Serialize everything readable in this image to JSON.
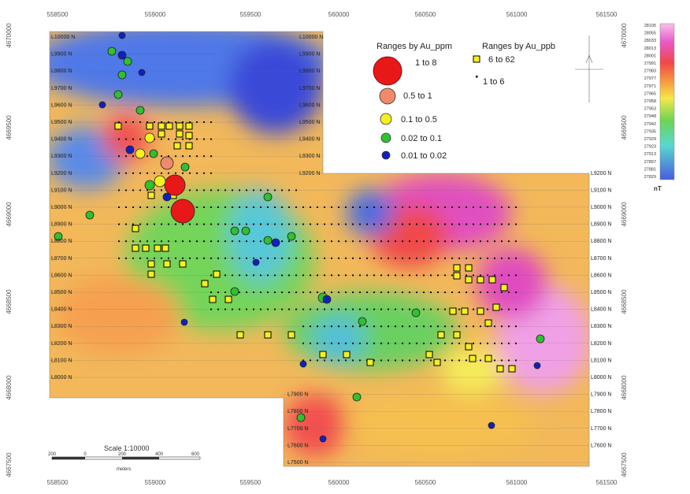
{
  "x_axis_labels": [
    "558500",
    "559000",
    "559500",
    "560000",
    "560500",
    "561000",
    "561500"
  ],
  "y_axis_labels": [
    "4670000",
    "4669500",
    "4669000",
    "4668500",
    "4668000",
    "4667500"
  ],
  "line_labels": [
    "L10000 N",
    "L9900 N",
    "L9800 N",
    "L9700 N",
    "L9600 N",
    "L9500 N",
    "L9400 N",
    "L9300 N",
    "L9200 N",
    "L9100 N",
    "L9000 N",
    "L8900 N",
    "L8800 N",
    "L8700 N",
    "L8600 N",
    "L8500 N",
    "L8400 N",
    "L8300 N",
    "L8200 N",
    "L8100 N",
    "L8000 N",
    "L7900 N",
    "L7800 N",
    "L7700 N",
    "L7600 N",
    "L7500 N"
  ],
  "legend_ppm": {
    "title": "Ranges by Au_ppm",
    "items": [
      "1 to 8",
      "0.5 to 1",
      "0.1 to 0.5",
      "0.02 to 0.1",
      "0.01 to 0.02"
    ]
  },
  "legend_ppb": {
    "title": "Ranges by Au_ppb",
    "items": [
      "6 to 62",
      "1 to 6"
    ]
  },
  "colorbar": {
    "labels": [
      "28105",
      "28055",
      "28033",
      "28013",
      "28001",
      "27991",
      "27983",
      "27977",
      "27971",
      "27965",
      "27958",
      "27953",
      "27948",
      "27942",
      "27935",
      "27929",
      "27923",
      "27913",
      "27897",
      "27881",
      "27829"
    ],
    "unit": "nT"
  },
  "scale": {
    "title": "Scale 1:10000",
    "ticks": [
      "200",
      "0",
      "200",
      "400",
      "600"
    ],
    "unit": "meters"
  }
}
